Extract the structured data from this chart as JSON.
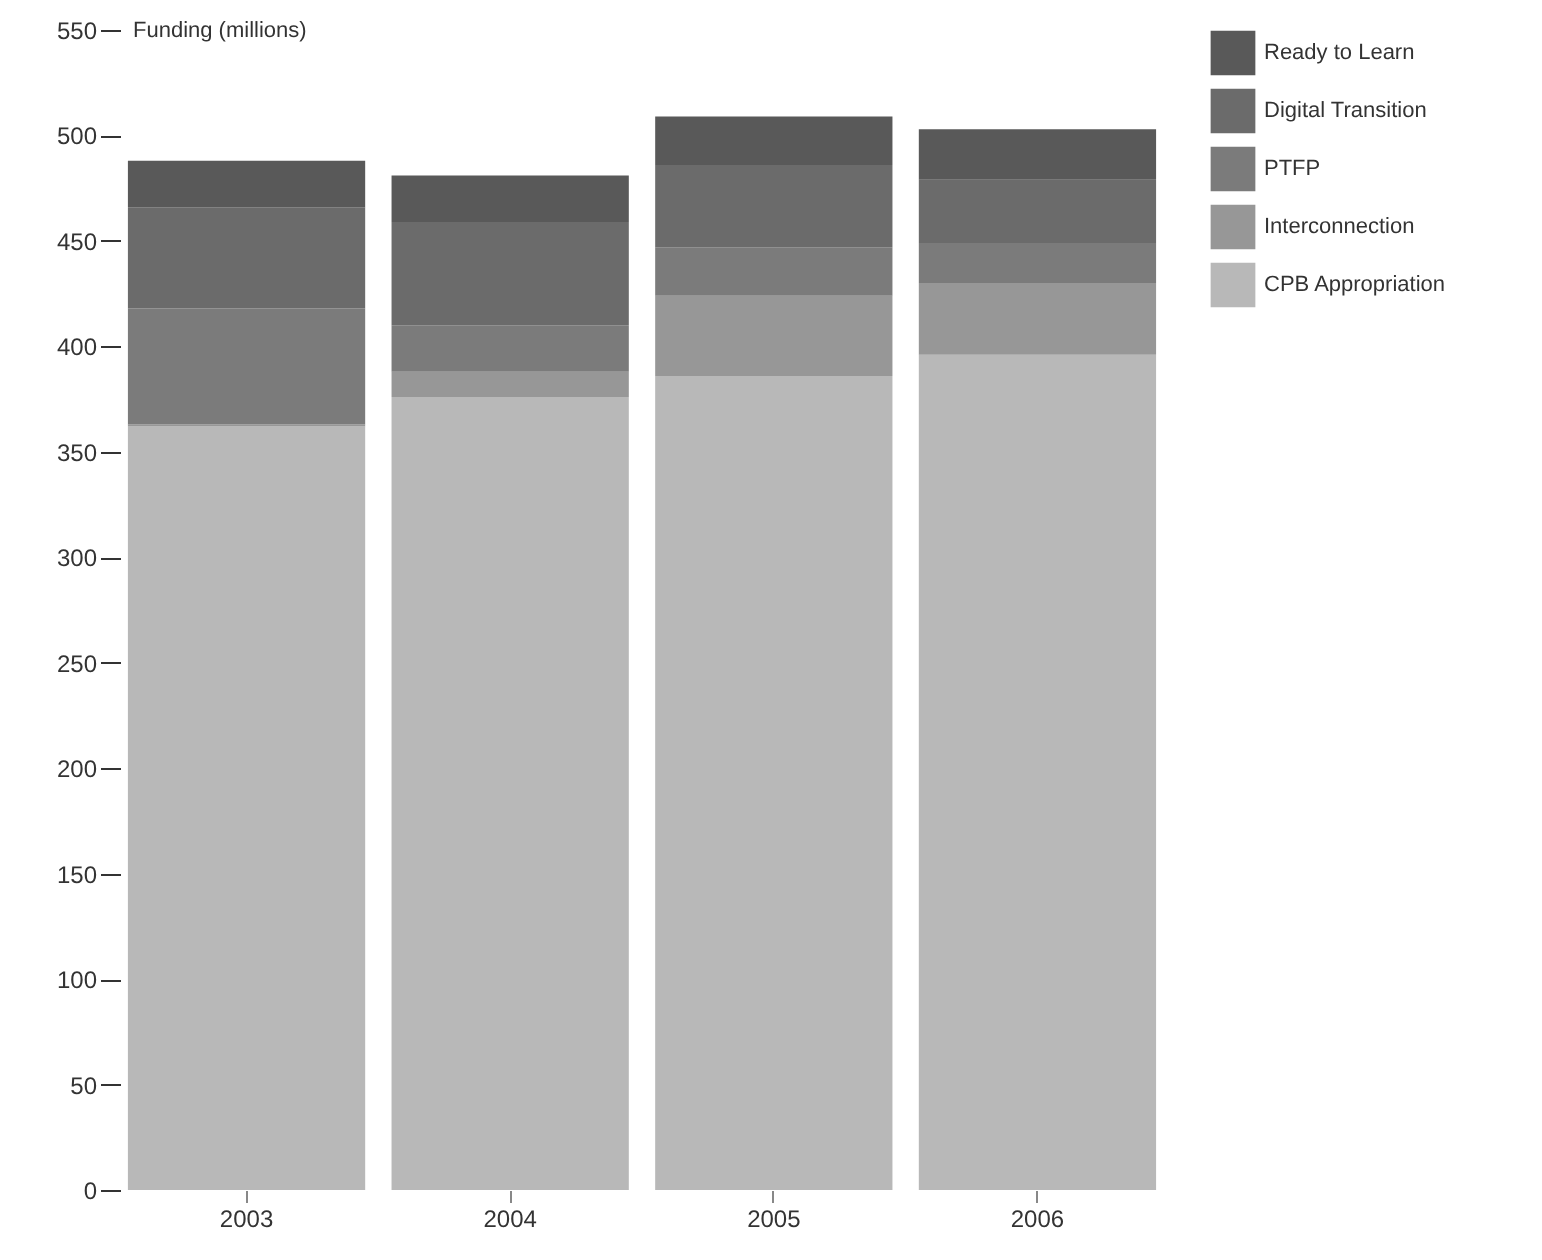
{
  "chart_data": {
    "type": "bar",
    "stacked": true,
    "ylabel": "Funding (millions)",
    "categories": [
      "2003",
      "2004",
      "2005",
      "2006"
    ],
    "series": [
      {
        "name": "CPB Appropriation",
        "color": "#b8b8b8",
        "values": [
          362,
          376,
          386,
          396
        ]
      },
      {
        "name": "Interconnection",
        "color": "#979797",
        "values": [
          1,
          12,
          38,
          34
        ]
      },
      {
        "name": "PTFP",
        "color": "#7b7b7b",
        "values": [
          55,
          22,
          23,
          19
        ]
      },
      {
        "name": "Digital Transition",
        "color": "#6b6b6b",
        "values": [
          48,
          49,
          39,
          30
        ]
      },
      {
        "name": "Ready to Learn",
        "color": "#595959",
        "values": [
          22,
          22,
          23,
          24
        ]
      }
    ],
    "ylim": [
      0,
      550
    ],
    "yticks": [
      0,
      50,
      100,
      150,
      200,
      250,
      300,
      350,
      400,
      450,
      500,
      550
    ],
    "legend": "top right"
  }
}
